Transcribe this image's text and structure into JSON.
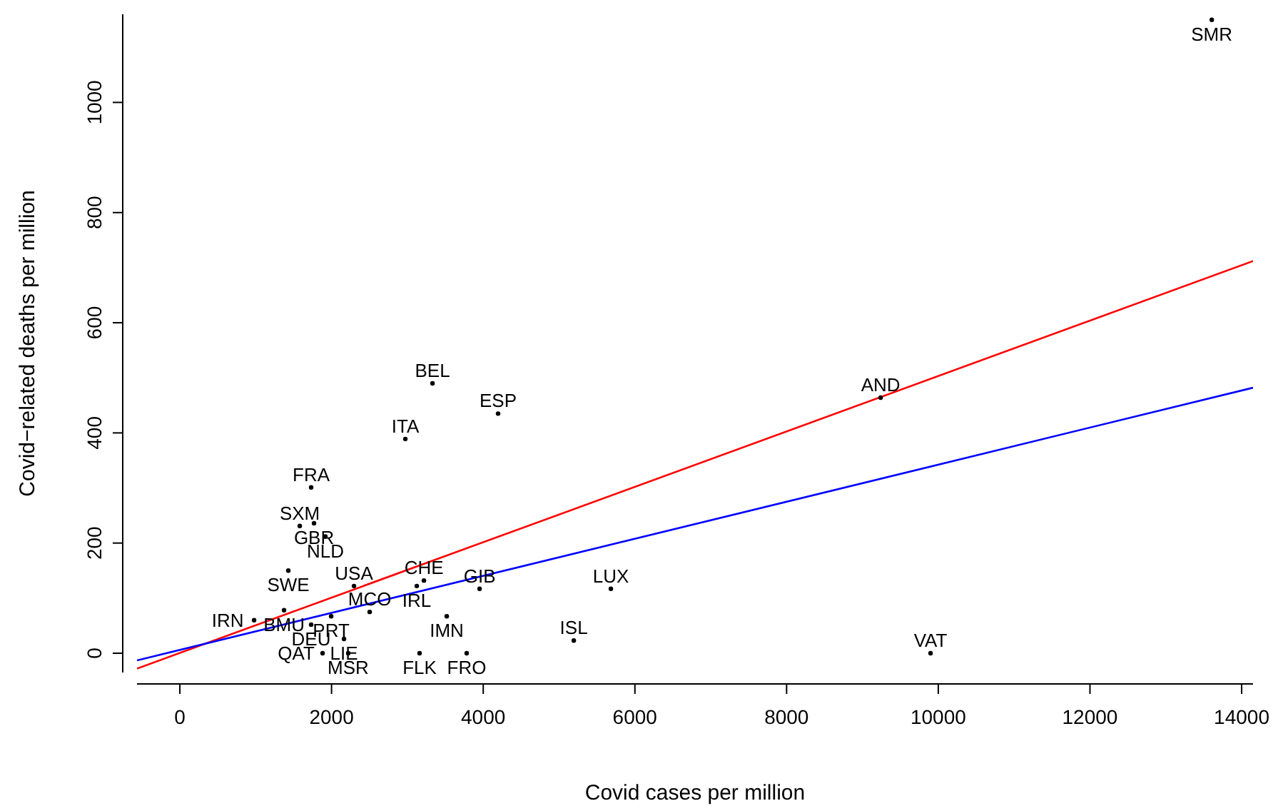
{
  "chart_data": {
    "type": "scatter",
    "xlabel": "Covid cases per million",
    "ylabel": "Covid−related deaths per million",
    "xlim": [
      -565,
      14150
    ],
    "ylim": [
      -35,
      1160
    ],
    "xticks": [
      0,
      2000,
      4000,
      6000,
      8000,
      10000,
      12000,
      14000
    ],
    "yticks": [
      0,
      200,
      400,
      600,
      800,
      1000
    ],
    "grid": false,
    "series": [
      {
        "type": "scatter",
        "marker": "circle",
        "color": "#000000",
        "x": [
          13606,
          9240,
          9898,
          3331,
          4196,
          2973,
          1731,
          1581,
          1769,
          1919,
          1430,
          2296,
          3218,
          3124,
          3952,
          5683,
          3519,
          5194,
          3161,
          3782,
          2503,
          1995,
          1374,
          2164,
          2220,
          1882,
          979,
          1731
        ],
        "values": [
          1150,
          464,
          0,
          490,
          435,
          389,
          301,
          231,
          236,
          212,
          150,
          122,
          132,
          122,
          117,
          117,
          67,
          23,
          0,
          0,
          75,
          67,
          78,
          26,
          0,
          0,
          60,
          52
        ],
        "value_labels": [
          "SMR",
          "AND",
          "VAT",
          "BEL",
          "ESP",
          "ITA",
          "FRA",
          "SXM",
          "GBR",
          "NLD",
          "SWE",
          "USA",
          "CHE",
          "IRL",
          "GIB",
          "LUX",
          "IMN",
          "ISL",
          "FLK",
          "FRO",
          "MCO",
          "PRT",
          "BMU",
          "LIE",
          "MSR",
          "QAT",
          "IRN",
          "DEU"
        ]
      },
      {
        "type": "line",
        "color": "#ff0000",
        "x": [
          -565,
          14150
        ],
        "values": [
          -28,
          712
        ]
      },
      {
        "type": "line",
        "color": "#0000ff",
        "x": [
          -565,
          14150
        ],
        "values": [
          -13,
          482
        ]
      }
    ]
  }
}
